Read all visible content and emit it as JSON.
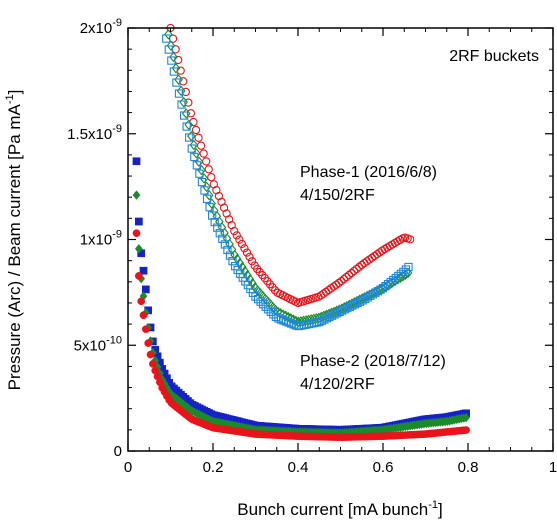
{
  "chart_data": {
    "type": "scatter",
    "title": "",
    "xlabel": "Bunch current [mA bunch",
    "xlabel_sup": "-1",
    "xlabel_end": "]",
    "ylabel": "Pressure (Arc) / Beam current [Pa mA",
    "ylabel_sup": "-1",
    "ylabel_end": "]",
    "xlim": [
      0,
      1
    ],
    "ylim": [
      0,
      2e-09
    ],
    "grid": false,
    "x_ticks": [
      0,
      0.2,
      0.4,
      0.6,
      0.8,
      1
    ],
    "x_tick_labels": [
      "0",
      "0.2",
      "0.4",
      "0.6",
      "0.8",
      "1"
    ],
    "y_ticks": [
      0,
      5e-10,
      1e-09,
      1.5e-09,
      2e-09
    ],
    "y_tick_labels": [
      {
        "mant": "0",
        "exp": ""
      },
      {
        "mant": "5x10",
        "exp": "-10"
      },
      {
        "mant": "1x10",
        "exp": "-9"
      },
      {
        "mant": "1.5x10",
        "exp": "-9"
      },
      {
        "mant": "2x10",
        "exp": "-9"
      }
    ],
    "annotations": {
      "buckets": "2RF buckets",
      "phase1_line1": "Phase-1 (2016/6/8)",
      "phase1_line2": "4/150/2RF",
      "phase2_line1": "Phase-2 (2018/7/12)",
      "phase2_line2": "4/120/2RF"
    },
    "series": [
      {
        "group": "Phase-1",
        "marker": "open-circle",
        "color": "#e8141b",
        "x": [
          0.1,
          0.15,
          0.2,
          0.25,
          0.3,
          0.35,
          0.4,
          0.45,
          0.5,
          0.55,
          0.6,
          0.65,
          0.665
        ],
        "y": [
          2e-09,
          1.58e-09,
          1.27e-09,
          1.04e-09,
          8.7e-10,
          7.5e-10,
          7e-10,
          7.3e-10,
          8e-10,
          8.8e-10,
          9.5e-10,
          1.01e-09,
          1e-09
        ]
      },
      {
        "group": "Phase-1",
        "marker": "open-diamond",
        "color": "#1a8a2a",
        "x": [
          0.095,
          0.15,
          0.2,
          0.25,
          0.3,
          0.35,
          0.4,
          0.45,
          0.5,
          0.55,
          0.6,
          0.65,
          0.665
        ],
        "y": [
          1.97e-09,
          1.48e-09,
          1.15e-09,
          9.3e-10,
          7.7e-10,
          6.6e-10,
          6.1e-10,
          6.3e-10,
          6.7e-10,
          7.2e-10,
          7.7e-10,
          8.3e-10,
          8.5e-10
        ]
      },
      {
        "group": "Phase-1",
        "marker": "open-square",
        "color": "#1e88d8",
        "x": [
          0.09,
          0.15,
          0.2,
          0.25,
          0.3,
          0.35,
          0.4,
          0.45,
          0.5,
          0.55,
          0.6,
          0.65,
          0.665
        ],
        "y": [
          1.95e-09,
          1.43e-09,
          1.1e-09,
          8.8e-10,
          7.3e-10,
          6.3e-10,
          5.9e-10,
          6.1e-10,
          6.6e-10,
          7.1e-10,
          7.7e-10,
          8.5e-10,
          8.8e-10
        ]
      },
      {
        "group": "Phase-2",
        "marker": "filled-square",
        "color": "#1522c8",
        "x": [
          0.02,
          0.025,
          0.03,
          0.04,
          0.05,
          0.06,
          0.08,
          0.1,
          0.15,
          0.2,
          0.3,
          0.4,
          0.5,
          0.6,
          0.7,
          0.75,
          0.8
        ],
        "y": [
          1.37e-09,
          1.1e-09,
          9.5e-10,
          8e-10,
          6.2e-10,
          5e-10,
          3.9e-10,
          3.1e-10,
          2.2e-10,
          1.7e-10,
          1.2e-10,
          1.05e-10,
          1e-10,
          1.1e-10,
          1.5e-10,
          1.6e-10,
          1.8e-10
        ]
      },
      {
        "group": "Phase-2",
        "marker": "filled-diamond",
        "color": "#1a8a2a",
        "x": [
          0.02,
          0.025,
          0.03,
          0.04,
          0.05,
          0.06,
          0.08,
          0.1,
          0.15,
          0.2,
          0.3,
          0.4,
          0.5,
          0.6,
          0.7,
          0.75,
          0.8
        ],
        "y": [
          1.21e-09,
          9.7e-10,
          8.3e-10,
          6.8e-10,
          5.5e-10,
          4.5e-10,
          3.4e-10,
          2.7e-10,
          1.9e-10,
          1.4e-10,
          1e-10,
          9e-11,
          8.5e-11,
          1e-10,
          1.3e-10,
          1.4e-10,
          1.6e-10
        ]
      },
      {
        "group": "Phase-2",
        "marker": "filled-circle",
        "color": "#e8141b",
        "x": [
          0.02,
          0.025,
          0.03,
          0.04,
          0.05,
          0.06,
          0.08,
          0.1,
          0.15,
          0.2,
          0.3,
          0.4,
          0.5,
          0.6,
          0.7,
          0.75,
          0.8
        ],
        "y": [
          1.03e-09,
          8.4e-10,
          7.2e-10,
          6e-10,
          4.8e-10,
          4e-10,
          3e-10,
          2.3e-10,
          1.5e-10,
          1.1e-10,
          8e-11,
          7e-11,
          6.5e-11,
          7e-11,
          8e-11,
          9e-11,
          1e-10
        ]
      }
    ]
  }
}
